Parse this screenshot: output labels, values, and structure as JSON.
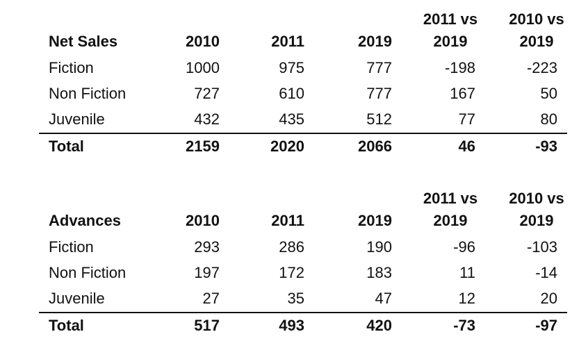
{
  "net_sales": {
    "header": {
      "label": "Net Sales",
      "y2010": "2010",
      "y2011": "2011",
      "y2019": "2019",
      "cmp1_top": "2011 vs",
      "cmp1_bottom": "2019",
      "cmp2_top": "2010 vs",
      "cmp2_bottom": "2019"
    },
    "rows": [
      {
        "label": "Fiction",
        "v2010": "1000",
        "v2011": "975",
        "v2019": "777",
        "d1": "-198",
        "d2": "-223"
      },
      {
        "label": "Non Fiction",
        "v2010": "727",
        "v2011": "610",
        "v2019": "777",
        "d1": "167",
        "d2": "50"
      },
      {
        "label": "Juvenile",
        "v2010": "432",
        "v2011": "435",
        "v2019": "512",
        "d1": "77",
        "d2": "80"
      }
    ],
    "total": {
      "label": "Total",
      "v2010": "2159",
      "v2011": "2020",
      "v2019": "2066",
      "d1": "46",
      "d2": "-93"
    }
  },
  "advances": {
    "header": {
      "label": "Advances",
      "y2010": "2010",
      "y2011": "2011",
      "y2019": "2019",
      "cmp1_top": "2011 vs",
      "cmp1_bottom": "2019",
      "cmp2_top": "2010 vs",
      "cmp2_bottom": "2019"
    },
    "rows": [
      {
        "label": "Fiction",
        "v2010": "293",
        "v2011": "286",
        "v2019": "190",
        "d1": "-96",
        "d2": "-103"
      },
      {
        "label": "Non Fiction",
        "v2010": "197",
        "v2011": "172",
        "v2019": "183",
        "d1": "11",
        "d2": "-14"
      },
      {
        "label": "Juvenile",
        "v2010": "27",
        "v2011": "35",
        "v2019": "47",
        "d1": "12",
        "d2": "20"
      }
    ],
    "total": {
      "label": "Total",
      "v2010": "517",
      "v2011": "493",
      "v2019": "420",
      "d1": "-73",
      "d2": "-97"
    }
  }
}
